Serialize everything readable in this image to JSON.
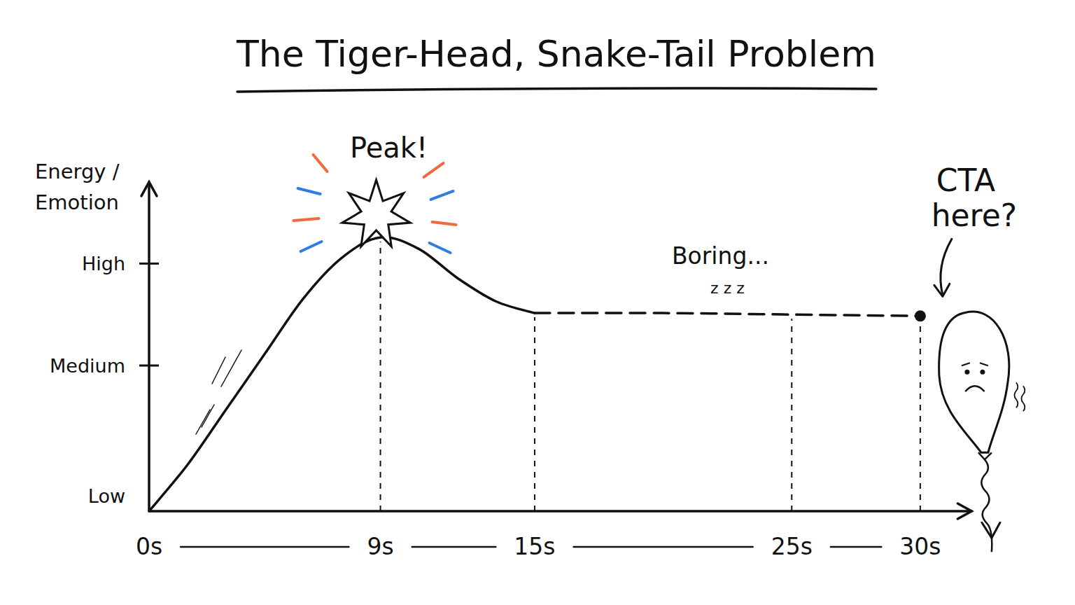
{
  "chart_data": {
    "type": "line",
    "title": "The Tiger-Head, Snake-Tail Problem",
    "y_label": "Energy / Emotion",
    "x": [
      0,
      1.5,
      3,
      4.5,
      6,
      7.5,
      9,
      10.5,
      12,
      13.5,
      15,
      20,
      25,
      30
    ],
    "series": [
      {
        "color": "#111111",
        "line_style": "solid",
        "values": [
          0,
          1.6,
          3.5,
          5.4,
          7.3,
          8.7,
          9.4,
          9.0,
          8.0,
          7.2,
          6.8,
          null,
          null,
          null
        ]
      },
      {
        "color": "#111111",
        "line_style": "dashed",
        "marker": "last",
        "values": [
          null,
          null,
          null,
          null,
          null,
          null,
          null,
          null,
          null,
          null,
          6.8,
          6.8,
          6.75,
          6.7
        ]
      }
    ],
    "xlim": [
      0,
      32
    ],
    "xticks": [
      {
        "value": 0,
        "label": "0s"
      },
      {
        "value": 9,
        "label": "9s"
      },
      {
        "value": 15,
        "label": "15s"
      },
      {
        "value": 25,
        "label": "25s"
      },
      {
        "value": 30,
        "label": "30s"
      }
    ],
    "ylim": [
      0,
      11.3
    ],
    "yticks": [
      {
        "value": 0,
        "label": "Low"
      },
      {
        "value": 5,
        "label": "Medium"
      },
      {
        "value": 8.5,
        "label": "High"
      }
    ],
    "grid": false,
    "annotations": {
      "peak": "Peak!",
      "plateau": "Boring...",
      "sleep": "z z z",
      "cta": "CTA here?"
    }
  }
}
